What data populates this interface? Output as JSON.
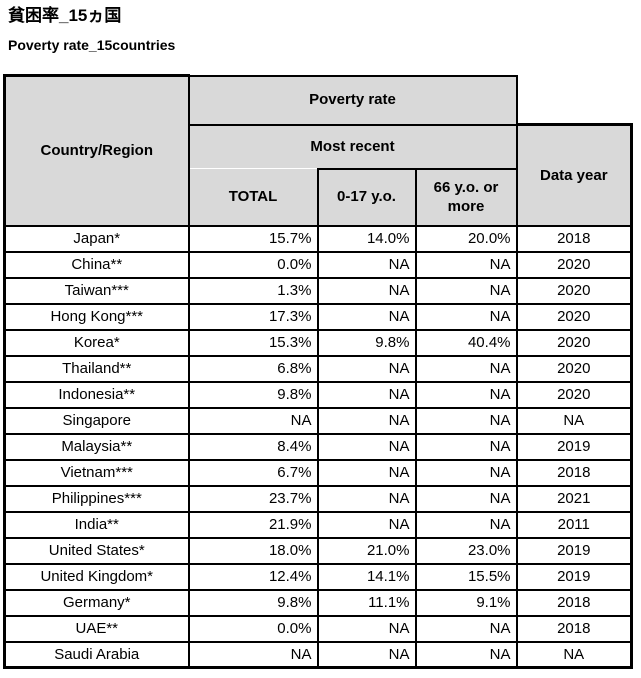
{
  "ui": {
    "title_ja": "貧困率_15ヵ国",
    "title_en": "Poverty rate_15countries",
    "header": {
      "country_region": "Country/Region",
      "poverty_rate": "Poverty rate",
      "most_recent": "Most recent",
      "total": "TOTAL",
      "age_0_17": "0-17 y.o.",
      "age_66_plus": "66 y.o. or more",
      "data_year": "Data year"
    },
    "colors": {
      "header_bg": "#d9d9d9",
      "border": "#000000",
      "text": "#000000",
      "row_bg": "#ffffff"
    }
  },
  "chart_data": {
    "type": "table",
    "title": "貧困率_15ヵ国",
    "subtitle": "Poverty rate_15countries",
    "columns": [
      "Country/Region",
      "Poverty rate / Most recent / TOTAL",
      "Poverty rate / Most recent / 0-17 y.o.",
      "Poverty rate / Most recent / 66 y.o. or more",
      "Data year"
    ],
    "rows": [
      [
        "Japan*",
        "15.7%",
        "14.0%",
        "20.0%",
        "2018"
      ],
      [
        "China**",
        "0.0%",
        "NA",
        "NA",
        "2020"
      ],
      [
        "Taiwan***",
        "1.3%",
        "NA",
        "NA",
        "2020"
      ],
      [
        "Hong Kong***",
        "17.3%",
        "NA",
        "NA",
        "2020"
      ],
      [
        "Korea*",
        "15.3%",
        "9.8%",
        "40.4%",
        "2020"
      ],
      [
        "Thailand**",
        "6.8%",
        "NA",
        "NA",
        "2020"
      ],
      [
        "Indonesia**",
        "9.8%",
        "NA",
        "NA",
        "2020"
      ],
      [
        "Singapore",
        "NA",
        "NA",
        "NA",
        "NA"
      ],
      [
        "Malaysia**",
        "8.4%",
        "NA",
        "NA",
        "2019"
      ],
      [
        "Vietnam***",
        "6.7%",
        "NA",
        "NA",
        "2018"
      ],
      [
        "Philippines***",
        "23.7%",
        "NA",
        "NA",
        "2021"
      ],
      [
        "India**",
        "21.9%",
        "NA",
        "NA",
        "2011"
      ],
      [
        "United States*",
        "18.0%",
        "21.0%",
        "23.0%",
        "2019"
      ],
      [
        "United Kingdom*",
        "12.4%",
        "14.1%",
        "15.5%",
        "2019"
      ],
      [
        "Germany*",
        "9.8%",
        "11.1%",
        "9.1%",
        "2018"
      ],
      [
        "UAE**",
        "0.0%",
        "NA",
        "NA",
        "2018"
      ],
      [
        "Saudi Arabia",
        "NA",
        "NA",
        "NA",
        "NA"
      ]
    ]
  }
}
